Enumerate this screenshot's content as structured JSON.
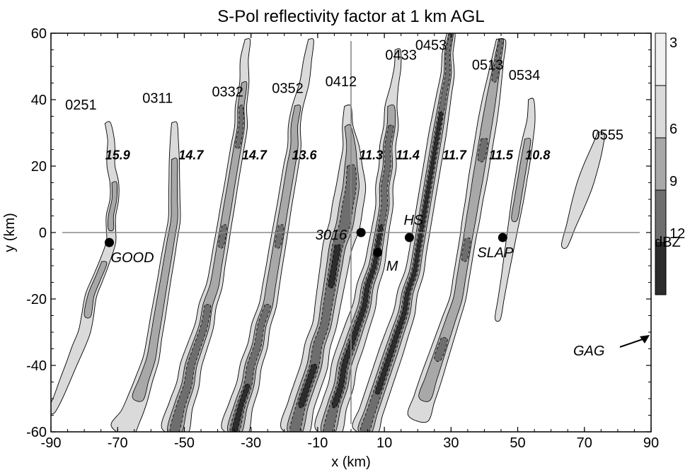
{
  "chart_data": {
    "type": "contour",
    "title": "S-Pol reflectivity factor at 1 km AGL",
    "xlabel": "x (km)",
    "ylabel": "y (km)",
    "xlim": [
      -90,
      90
    ],
    "ylim": [
      -60,
      60
    ],
    "x_ticks": [
      -90,
      -70,
      -50,
      -30,
      -10,
      10,
      30,
      50,
      70,
      90
    ],
    "y_ticks": [
      -60,
      -40,
      -20,
      0,
      20,
      40,
      60
    ],
    "grid": false,
    "reference_lines": {
      "horizontal_y": 0,
      "vertical_x": 0
    },
    "colorbar": {
      "levels": [
        3,
        6,
        9,
        12
      ],
      "unit": "dBZ",
      "colors": [
        "#f0f0f0",
        "#dadada",
        "#a8a8a8",
        "#6e6e6e",
        "#2c2c2c"
      ]
    },
    "line_times": [
      {
        "label": "0251",
        "x": -81,
        "y": 37
      },
      {
        "label": "0311",
        "x": -58,
        "y": 39
      },
      {
        "label": "0332",
        "x": -37,
        "y": 41
      },
      {
        "label": "0352",
        "x": -19,
        "y": 42
      },
      {
        "label": "0412",
        "x": -3,
        "y": 44
      },
      {
        "label": "0433",
        "x": 15,
        "y": 52
      },
      {
        "label": "0453",
        "x": 24,
        "y": 55
      },
      {
        "label": "0513",
        "x": 41,
        "y": 49
      },
      {
        "label": "0534",
        "x": 52,
        "y": 46
      },
      {
        "label": "0555",
        "x": 77,
        "y": 28
      }
    ],
    "speeds": [
      {
        "label": "15.9",
        "x": -70,
        "y": 22
      },
      {
        "label": "14.7",
        "x": -48,
        "y": 22
      },
      {
        "label": "14.7",
        "x": -29,
        "y": 22
      },
      {
        "label": "13.6",
        "x": -14,
        "y": 22
      },
      {
        "label": "11.3",
        "x": 6,
        "y": 22
      },
      {
        "label": "11.4",
        "x": 17,
        "y": 22
      },
      {
        "label": "11.7",
        "x": 31,
        "y": 22
      },
      {
        "label": "11.5",
        "x": 45,
        "y": 22
      },
      {
        "label": "10.8",
        "x": 56,
        "y": 22
      }
    ],
    "sites": [
      {
        "label": "GOOD",
        "x": -72.5,
        "y": -3
      },
      {
        "label": "3016",
        "x": 3,
        "y": 0
      },
      {
        "label": "M",
        "x": 8,
        "y": -6
      },
      {
        "label": "HS",
        "x": 17.5,
        "y": -1.5
      },
      {
        "label": "SLAP",
        "x": 45.5,
        "y": -1.5
      }
    ],
    "annotation": {
      "label": "GAG",
      "arrow_to": [
        90,
        -30
      ]
    },
    "series": [
      {
        "time": "0251",
        "path": [
          [
            -73,
            33
          ],
          [
            -72,
            28
          ],
          [
            -72,
            24
          ],
          [
            -72,
            20
          ],
          [
            -71,
            15
          ],
          [
            -71,
            10
          ],
          [
            -72,
            5
          ],
          [
            -72,
            1
          ],
          [
            -72,
            -3
          ],
          [
            -74,
            -9
          ],
          [
            -76,
            -14
          ],
          [
            -78,
            -19
          ],
          [
            -79,
            -25
          ],
          [
            -80,
            -30
          ],
          [
            -82,
            -35
          ],
          [
            -84,
            -40
          ],
          [
            -86,
            -45
          ],
          [
            -88,
            -50
          ],
          [
            -90,
            -54
          ]
        ],
        "widths": [
          0.8,
          1.0,
          1.2,
          1.2,
          1.3,
          1.3,
          1.4,
          1.4,
          1.4,
          1.5,
          1.6,
          1.7,
          1.8,
          1.8,
          1.8,
          1.6,
          1.5,
          1.3,
          1.0
        ],
        "intensity": [
          0,
          0,
          0,
          0,
          1,
          1,
          1,
          1,
          0,
          1,
          1,
          1,
          1,
          0,
          0,
          0,
          0,
          0,
          0
        ]
      },
      {
        "time": "0311",
        "path": [
          [
            -53,
            33
          ],
          [
            -53,
            28
          ],
          [
            -53,
            22
          ],
          [
            -53,
            16
          ],
          [
            -53,
            10
          ],
          [
            -53,
            4
          ],
          [
            -54,
            -2
          ],
          [
            -55,
            -8
          ],
          [
            -56,
            -14
          ],
          [
            -57,
            -20
          ],
          [
            -58,
            -26
          ],
          [
            -59,
            -32
          ],
          [
            -60,
            -38
          ],
          [
            -62,
            -44
          ],
          [
            -64,
            -50
          ],
          [
            -66,
            -55
          ],
          [
            -69,
            -60
          ]
        ],
        "widths": [
          0.8,
          1.2,
          1.5,
          1.6,
          1.7,
          1.8,
          1.9,
          2.0,
          2.0,
          2.1,
          2.2,
          2.2,
          2.4,
          2.6,
          3.0,
          3.2,
          3.4
        ],
        "intensity": [
          0,
          0,
          1,
          1,
          1,
          1,
          1,
          1,
          1,
          1,
          1,
          1,
          1,
          1,
          1,
          0,
          0
        ]
      },
      {
        "time": "0332",
        "path": [
          [
            -31,
            58
          ],
          [
            -32,
            52
          ],
          [
            -32,
            45
          ],
          [
            -33,
            38
          ],
          [
            -33,
            32
          ],
          [
            -34,
            26
          ],
          [
            -35,
            20
          ],
          [
            -36,
            14
          ],
          [
            -37,
            8
          ],
          [
            -38,
            2
          ],
          [
            -39,
            -4
          ],
          [
            -40,
            -10
          ],
          [
            -41,
            -16
          ],
          [
            -43,
            -22
          ],
          [
            -44,
            -28
          ],
          [
            -46,
            -34
          ],
          [
            -48,
            -40
          ],
          [
            -49,
            -46
          ],
          [
            -51,
            -52
          ],
          [
            -53,
            -60
          ]
        ],
        "widths": [
          0.8,
          1.2,
          1.4,
          1.7,
          1.9,
          2.0,
          2.0,
          2.0,
          2.1,
          2.1,
          2.2,
          2.2,
          2.4,
          2.6,
          2.8,
          3.0,
          3.2,
          3.4,
          3.6,
          3.8
        ],
        "intensity": [
          0,
          0,
          1,
          2,
          2,
          2,
          1,
          1,
          1,
          2,
          2,
          1,
          1,
          2,
          2,
          2,
          2,
          2,
          3,
          2
        ]
      },
      {
        "time": "0352",
        "path": [
          [
            -12,
            58
          ],
          [
            -13,
            52
          ],
          [
            -14,
            45
          ],
          [
            -16,
            38
          ],
          [
            -17,
            32
          ],
          [
            -17,
            26
          ],
          [
            -18,
            20
          ],
          [
            -19,
            14
          ],
          [
            -20,
            8
          ],
          [
            -21,
            2
          ],
          [
            -22,
            -4
          ],
          [
            -23,
            -10
          ],
          [
            -24,
            -16
          ],
          [
            -25,
            -22
          ],
          [
            -27,
            -28
          ],
          [
            -28,
            -34
          ],
          [
            -30,
            -40
          ],
          [
            -31,
            -46
          ],
          [
            -33,
            -52
          ],
          [
            -35,
            -60
          ]
        ],
        "widths": [
          0.8,
          1.2,
          1.4,
          1.6,
          1.8,
          2.0,
          2.2,
          2.2,
          2.2,
          2.3,
          2.4,
          2.4,
          2.5,
          2.6,
          2.8,
          3.0,
          3.2,
          3.4,
          3.6,
          3.8
        ],
        "intensity": [
          0,
          0,
          0,
          1,
          1,
          1,
          2,
          1,
          1,
          2,
          2,
          1,
          1,
          2,
          2,
          2,
          2,
          3,
          3,
          3
        ]
      },
      {
        "time": "0412",
        "path": [
          [
            -1,
            38
          ],
          [
            -1,
            32
          ],
          [
            0,
            26
          ],
          [
            0,
            20
          ],
          [
            0,
            14
          ],
          [
            -1,
            8
          ],
          [
            -2,
            2
          ],
          [
            -4,
            -4
          ],
          [
            -5,
            -10
          ],
          [
            -6,
            -16
          ],
          [
            -7,
            -22
          ],
          [
            -8,
            -28
          ],
          [
            -10,
            -34
          ],
          [
            -11,
            -40
          ],
          [
            -13,
            -46
          ],
          [
            -15,
            -52
          ],
          [
            -17,
            -60
          ]
        ],
        "widths": [
          1.0,
          1.6,
          2.4,
          3.4,
          4.4,
          4.6,
          4.6,
          4.4,
          4.2,
          4.0,
          3.8,
          3.6,
          3.8,
          4.0,
          4.0,
          4.0,
          4.0
        ],
        "intensity": [
          0,
          1,
          1,
          2,
          2,
          2,
          2,
          3,
          4,
          3,
          2,
          2,
          2,
          3,
          3,
          3,
          2
        ]
      },
      {
        "time": "0433",
        "path": [
          [
            14,
            55
          ],
          [
            14,
            50
          ],
          [
            13,
            44
          ],
          [
            12,
            38
          ],
          [
            12,
            32
          ],
          [
            11,
            26
          ],
          [
            11,
            20
          ],
          [
            10,
            14
          ],
          [
            10,
            8
          ],
          [
            9,
            2
          ],
          [
            8,
            -4
          ],
          [
            7,
            -10
          ],
          [
            5,
            -16
          ],
          [
            4,
            -22
          ],
          [
            2,
            -28
          ],
          [
            0,
            -34
          ],
          [
            -2,
            -40
          ],
          [
            -3,
            -46
          ],
          [
            -5,
            -52
          ],
          [
            -7,
            -60
          ]
        ],
        "widths": [
          0.8,
          1.0,
          1.2,
          1.8,
          2.2,
          2.4,
          2.6,
          2.6,
          2.6,
          2.6,
          2.8,
          3.0,
          3.2,
          3.4,
          3.6,
          3.8,
          3.8,
          3.8,
          3.8,
          3.8
        ],
        "intensity": [
          0,
          0,
          0,
          1,
          2,
          2,
          2,
          2,
          2,
          3,
          3,
          3,
          3,
          3,
          3,
          3,
          3,
          3,
          3,
          2
        ]
      },
      {
        "time": "0453",
        "path": [
          [
            30,
            60
          ],
          [
            29,
            54
          ],
          [
            29,
            48
          ],
          [
            28,
            42
          ],
          [
            27,
            36
          ],
          [
            26,
            30
          ],
          [
            25,
            24
          ],
          [
            24,
            18
          ],
          [
            23,
            12
          ],
          [
            22,
            6
          ],
          [
            21,
            0
          ],
          [
            20,
            -6
          ],
          [
            19,
            -12
          ],
          [
            17,
            -18
          ],
          [
            16,
            -24
          ],
          [
            14,
            -30
          ],
          [
            12,
            -36
          ],
          [
            10,
            -42
          ],
          [
            8,
            -48
          ],
          [
            6,
            -54
          ],
          [
            4,
            -60
          ]
        ],
        "widths": [
          1.2,
          1.6,
          2.0,
          2.2,
          2.4,
          2.6,
          2.6,
          2.6,
          2.6,
          2.6,
          2.6,
          2.6,
          2.8,
          3.0,
          3.2,
          3.4,
          3.6,
          3.6,
          3.6,
          3.6,
          3.6
        ],
        "intensity": [
          2,
          2,
          2,
          2,
          3,
          3,
          3,
          3,
          3,
          3,
          3,
          3,
          3,
          3,
          3,
          3,
          3,
          3,
          3,
          2,
          2
        ]
      },
      {
        "time": "0513",
        "path": [
          [
            45,
            58
          ],
          [
            44,
            52
          ],
          [
            43,
            46
          ],
          [
            42,
            40
          ],
          [
            41,
            34
          ],
          [
            40,
            28
          ],
          [
            39,
            22
          ],
          [
            38,
            16
          ],
          [
            37,
            10
          ],
          [
            36,
            4
          ],
          [
            35,
            -2
          ],
          [
            34,
            -8
          ],
          [
            33,
            -14
          ],
          [
            32,
            -20
          ],
          [
            30,
            -26
          ],
          [
            28,
            -32
          ],
          [
            26,
            -38
          ],
          [
            24,
            -44
          ],
          [
            22,
            -50
          ],
          [
            20,
            -56
          ]
        ],
        "widths": [
          1.4,
          1.8,
          2.2,
          2.6,
          2.8,
          2.8,
          2.8,
          2.8,
          2.6,
          2.6,
          2.4,
          2.4,
          2.4,
          2.4,
          2.6,
          2.8,
          3.0,
          3.2,
          3.2,
          3.0
        ],
        "intensity": [
          2,
          2,
          2,
          1,
          1,
          2,
          2,
          1,
          1,
          1,
          2,
          2,
          1,
          1,
          1,
          2,
          2,
          1,
          1,
          0
        ]
      },
      {
        "time": "0534",
        "path": [
          [
            54,
            40
          ],
          [
            54,
            34
          ],
          [
            53,
            28
          ],
          [
            52,
            22
          ],
          [
            51,
            16
          ],
          [
            50,
            10
          ],
          [
            49,
            4
          ],
          [
            48,
            -2
          ],
          [
            47,
            -8
          ],
          [
            46,
            -14
          ],
          [
            45,
            -20
          ],
          [
            44,
            -26
          ]
        ],
        "widths": [
          0.8,
          1.2,
          1.6,
          1.8,
          1.8,
          1.8,
          1.6,
          1.4,
          1.2,
          1.0,
          0.9,
          0.8
        ],
        "intensity": [
          0,
          0,
          1,
          1,
          1,
          1,
          1,
          0,
          0,
          0,
          0,
          0
        ]
      },
      {
        "time": "0555",
        "path": [
          [
            75,
            30
          ],
          [
            74,
            26
          ],
          [
            72,
            20
          ],
          [
            70,
            14
          ],
          [
            68,
            8
          ],
          [
            66,
            2
          ],
          [
            64,
            -4
          ]
        ],
        "widths": [
          1.0,
          1.6,
          2.2,
          2.4,
          2.0,
          1.4,
          0.9
        ],
        "intensity": [
          0,
          0,
          0,
          0,
          0,
          0,
          0
        ]
      }
    ]
  }
}
